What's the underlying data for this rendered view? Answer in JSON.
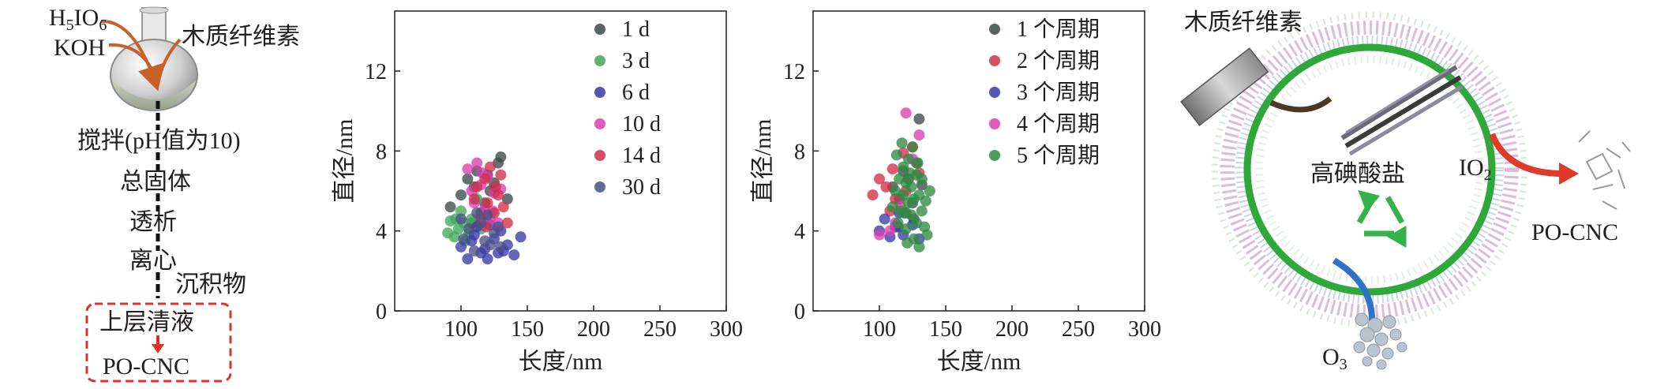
{
  "flow": {
    "reagent1": "H",
    "reagent1_sub1": "5",
    "reagent1_mid": "IO",
    "reagent1_sub2": "6",
    "reagent2": "KOH",
    "feed": "木质纤维素",
    "steps": [
      "搅拌(pH值为10)",
      "总固体",
      "透析",
      "离心"
    ],
    "side_output": "沉积物",
    "supernatant": "上层清液",
    "product": "PO-CNC"
  },
  "chart_data": [
    {
      "type": "scatter",
      "xlabel": "长度/nm",
      "ylabel": "直径/nm",
      "xlim": [
        50,
        300
      ],
      "ylim": [
        0,
        15
      ],
      "xticks": [
        "100",
        "150",
        "200",
        "250",
        "300"
      ],
      "yticks": [
        "0",
        "4",
        "8",
        "12"
      ],
      "legend_position": "top-right",
      "series": [
        {
          "name": "1 d",
          "color": "#3d4a4a",
          "points": [
            [
              92,
              5.2
            ],
            [
              100,
              5.8
            ],
            [
              105,
              6.6
            ],
            [
              110,
              6.2
            ],
            [
              115,
              4.9
            ],
            [
              120,
              6.8
            ],
            [
              125,
              6.4
            ],
            [
              128,
              7.4
            ],
            [
              130,
              7.7
            ],
            [
              135,
              5.6
            ],
            [
              118,
              5.4
            ],
            [
              108,
              4.4
            ],
            [
              112,
              7.0
            ],
            [
              122,
              6.0
            ]
          ]
        },
        {
          "name": "3 d",
          "color": "#3fa85a",
          "points": [
            [
              90,
              3.9
            ],
            [
              92,
              4.5
            ],
            [
              95,
              3.7
            ],
            [
              98,
              4.1
            ],
            [
              100,
              5.0
            ],
            [
              103,
              3.5
            ],
            [
              108,
              4.6
            ],
            [
              112,
              5.6
            ],
            [
              115,
              4.1
            ],
            [
              118,
              4.8
            ],
            [
              96,
              4.6
            ],
            [
              102,
              4.4
            ],
            [
              106,
              3.9
            ]
          ]
        },
        {
          "name": "6 d",
          "color": "#3a3aa6",
          "points": [
            [
              100,
              3.2
            ],
            [
              105,
              2.6
            ],
            [
              110,
              3.8
            ],
            [
              112,
              4.2
            ],
            [
              118,
              3.1
            ],
            [
              120,
              2.6
            ],
            [
              122,
              4.3
            ],
            [
              125,
              3.6
            ],
            [
              128,
              2.9
            ],
            [
              130,
              4.0
            ],
            [
              135,
              3.3
            ],
            [
              140,
              2.8
            ],
            [
              145,
              3.7
            ],
            [
              115,
              2.9
            ],
            [
              108,
              3.5
            ],
            [
              132,
              3.0
            ]
          ]
        },
        {
          "name": "10 d",
          "color": "#d93fb0",
          "points": [
            [
              105,
              7.1
            ],
            [
              108,
              6.0
            ],
            [
              110,
              5.4
            ],
            [
              112,
              7.4
            ],
            [
              115,
              6.3
            ],
            [
              118,
              5.1
            ],
            [
              120,
              6.7
            ],
            [
              122,
              4.6
            ],
            [
              125,
              5.9
            ],
            [
              128,
              4.4
            ],
            [
              130,
              6.1
            ],
            [
              116,
              6.9
            ],
            [
              124,
              5.0
            ]
          ]
        },
        {
          "name": "14 d",
          "color": "#d0304a",
          "points": [
            [
              110,
              5.6
            ],
            [
              112,
              6.2
            ],
            [
              115,
              4.6
            ],
            [
              118,
              6.6
            ],
            [
              120,
              5.4
            ],
            [
              122,
              7.2
            ],
            [
              125,
              4.9
            ],
            [
              128,
              5.8
            ],
            [
              130,
              6.8
            ],
            [
              132,
              5.2
            ],
            [
              135,
              4.4
            ],
            [
              126,
              6.2
            ],
            [
              119,
              4.2
            ]
          ]
        },
        {
          "name": "30 d",
          "color": "#4a4f86",
          "points": [
            [
              100,
              4.6
            ],
            [
              102,
              3.6
            ],
            [
              106,
              4.1
            ],
            [
              110,
              3.0
            ],
            [
              115,
              4.4
            ],
            [
              118,
              3.5
            ],
            [
              120,
              4.8
            ],
            [
              125,
              3.9
            ],
            [
              128,
              4.2
            ],
            [
              130,
              3.2
            ],
            [
              112,
              4.9
            ],
            [
              122,
              3.3
            ]
          ]
        }
      ]
    },
    {
      "type": "scatter",
      "xlabel": "长度/nm",
      "ylabel": "直径/nm",
      "xlim": [
        50,
        300
      ],
      "ylim": [
        0,
        15
      ],
      "xticks": [
        "100",
        "150",
        "200",
        "250",
        "300"
      ],
      "yticks": [
        "0",
        "4",
        "8",
        "12"
      ],
      "legend_position": "top-right",
      "series": [
        {
          "name": "1 个周期",
          "color": "#3d4a4a",
          "points": [
            [
              110,
              6.2
            ],
            [
              115,
              5.6
            ],
            [
              118,
              7.0
            ],
            [
              120,
              4.9
            ],
            [
              122,
              6.6
            ],
            [
              125,
              5.4
            ],
            [
              128,
              7.4
            ],
            [
              130,
              9.6
            ],
            [
              132,
              6.3
            ],
            [
              126,
              4.6
            ],
            [
              114,
              4.2
            ]
          ]
        },
        {
          "name": "2 个周期",
          "color": "#d0304a",
          "points": [
            [
              95,
              5.8
            ],
            [
              100,
              6.6
            ],
            [
              105,
              6.2
            ],
            [
              108,
              5.0
            ],
            [
              110,
              7.1
            ],
            [
              112,
              5.6
            ],
            [
              118,
              7.9
            ],
            [
              120,
              6.0
            ],
            [
              125,
              8.2
            ],
            [
              130,
              6.9
            ]
          ]
        },
        {
          "name": "3 个周期",
          "color": "#3a3aa6",
          "points": [
            [
              100,
              4.0
            ],
            [
              104,
              4.6
            ],
            [
              108,
              3.7
            ],
            [
              112,
              4.2
            ],
            [
              118,
              3.8
            ],
            [
              125,
              4.3
            ],
            [
              130,
              3.6
            ],
            [
              115,
              4.9
            ]
          ]
        },
        {
          "name": "4 个周期",
          "color": "#d93fb0",
          "points": [
            [
              100,
              3.8
            ],
            [
              112,
              4.4
            ],
            [
              120,
              9.9
            ],
            [
              125,
              7.6
            ],
            [
              130,
              8.8
            ],
            [
              108,
              4.0
            ],
            [
              116,
              5.2
            ]
          ]
        },
        {
          "name": "5 个周期",
          "color": "#2f8a43",
          "points": [
            [
              110,
              5.2
            ],
            [
              112,
              6.0
            ],
            [
              114,
              4.4
            ],
            [
              115,
              6.6
            ],
            [
              116,
              5.0
            ],
            [
              118,
              7.2
            ],
            [
              118,
              5.8
            ],
            [
              120,
              4.1
            ],
            [
              120,
              6.4
            ],
            [
              122,
              5.4
            ],
            [
              122,
              7.6
            ],
            [
              124,
              4.8
            ],
            [
              124,
              6.2
            ],
            [
              126,
              5.6
            ],
            [
              126,
              3.6
            ],
            [
              128,
              6.8
            ],
            [
              128,
              4.4
            ],
            [
              130,
              5.8
            ],
            [
              130,
              3.2
            ],
            [
              132,
              6.6
            ],
            [
              132,
              5.0
            ],
            [
              134,
              4.2
            ],
            [
              135,
              5.5
            ],
            [
              136,
              3.8
            ],
            [
              138,
              6.0
            ],
            [
              113,
              7.8
            ],
            [
              117,
              8.4
            ],
            [
              121,
              3.4
            ],
            [
              125,
              8.2
            ],
            [
              129,
              7.4
            ],
            [
              119,
              4.9
            ],
            [
              123,
              6.9
            ]
          ]
        }
      ]
    }
  ],
  "cycle": {
    "feed": "木质纤维素",
    "oxidant": "高碘酸盐",
    "byproduct_pre": "IO",
    "byproduct_sub": "2",
    "product": "PO-CNC",
    "ozone_pre": "O",
    "ozone_sub": "3",
    "colors": {
      "ring": "#2fa83a",
      "arrow_red": "#e03a2a",
      "arrow_blue": "#2f72c8",
      "recycle": "#33b24a"
    }
  }
}
